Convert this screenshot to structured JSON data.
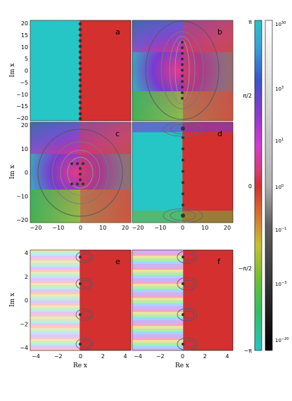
{
  "panels": [
    {
      "label": "a",
      "x_ticks": [],
      "y_ticks": [
        "20",
        "15",
        "10",
        "5",
        "0",
        "−5",
        "−10",
        "−15",
        "−20"
      ]
    },
    {
      "label": "b",
      "x_ticks": [],
      "y_ticks": []
    },
    {
      "label": "c",
      "x_ticks": [
        "−20",
        "−10",
        "0",
        "10",
        "20"
      ],
      "y_ticks": [
        "20",
        "10",
        "0",
        "−10",
        "−20"
      ]
    },
    {
      "label": "d",
      "x_ticks": [
        "−20",
        "−10",
        "0",
        "10",
        "20"
      ],
      "y_ticks": []
    },
    {
      "label": "e",
      "x_ticks": [
        "−4",
        "−2",
        "0",
        "2",
        "4"
      ],
      "y_ticks": [
        "4",
        "2",
        "0",
        "−2",
        "−4"
      ]
    },
    {
      "label": "f",
      "x_ticks": [
        "−4",
        "−2",
        "0",
        "2",
        "4"
      ],
      "y_ticks": []
    }
  ],
  "axis_labels": {
    "ylabel_top": "Im x",
    "ylabel_mid": "Im x",
    "ylabel_bot": "Im x",
    "xlabel_left": "Re x",
    "xlabel_right": "Re x"
  },
  "phase_colorbar": {
    "ticks": [
      "π",
      "π/2",
      "0",
      "−π/2",
      "−π"
    ]
  },
  "magnitude_colorbar": {
    "ticks": [
      "10^30",
      "10^3",
      "10^1",
      "10^0",
      "10^-1",
      "10^-3",
      "10^-20"
    ]
  }
}
